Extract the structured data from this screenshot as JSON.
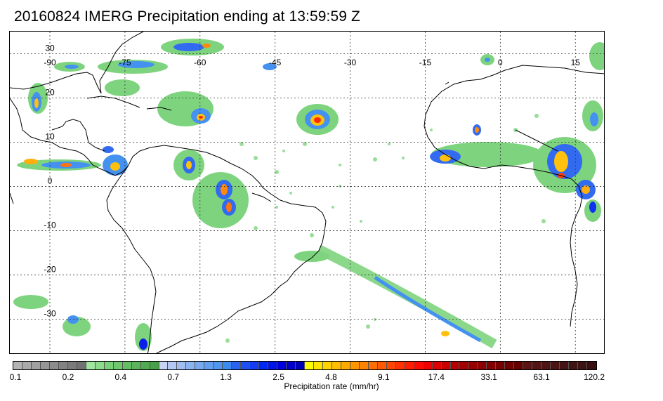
{
  "title": "20160824 IMERG Precipitation ending at 13:59:59 Z",
  "map": {
    "lon_range": [
      -98,
      21
    ],
    "lat_range": [
      -38,
      35
    ],
    "lon_grid": [
      -90,
      -75,
      -60,
      -45,
      -30,
      -15,
      0,
      15
    ],
    "lat_grid": [
      30,
      20,
      10,
      0,
      -10,
      -20,
      -30
    ],
    "lon_labels": [
      "-90",
      "-75",
      "-60",
      "-45",
      "-30",
      "-15",
      "0",
      "15"
    ],
    "lat_labels": [
      "30",
      "20",
      "10",
      "0",
      "-10",
      "-20",
      "-30"
    ],
    "gridline_style": "dotted",
    "coastline_color": "#000000"
  },
  "colorbar": {
    "colors": [
      "#b4b4b4",
      "#aaaaaa",
      "#a0a0a0",
      "#969696",
      "#8c8c8c",
      "#828282",
      "#7a7a7a",
      "#727272",
      "#a0e6a0",
      "#8cdc8c",
      "#78d278",
      "#6ec86e",
      "#64be64",
      "#5ab45a",
      "#50aa50",
      "#48a048",
      "#c8d2f5",
      "#b4c8f5",
      "#a0bef0",
      "#8cb4f0",
      "#78aaf0",
      "#64a0f0",
      "#5096f0",
      "#3c8cf0",
      "#2864f0",
      "#1e50f0",
      "#143cf0",
      "#0028f0",
      "#0014e6",
      "#0000dc",
      "#0000c8",
      "#0000b4",
      "#ffff00",
      "#ffe600",
      "#ffd200",
      "#ffbe00",
      "#ffaa00",
      "#ff9600",
      "#ff8200",
      "#ff6e00",
      "#ff5a00",
      "#ff4600",
      "#ff3200",
      "#ff1e00",
      "#ff0a00",
      "#f00000",
      "#dc0000",
      "#c80000",
      "#b40000",
      "#a00000",
      "#960000",
      "#8c0000",
      "#820000",
      "#780000",
      "#6e0000",
      "#640000",
      "#5a1414",
      "#551414",
      "#501414",
      "#4b1414",
      "#461414",
      "#411414",
      "#3c1414",
      "#370f0f"
    ],
    "labels": [
      "0.1",
      "0.2",
      "0.4",
      "0.7",
      "1.3",
      "2.5",
      "4.8",
      "9.1",
      "17.4",
      "33.1",
      "63.1",
      "120.2"
    ],
    "title": "Precipitation rate (mm/hr)"
  }
}
